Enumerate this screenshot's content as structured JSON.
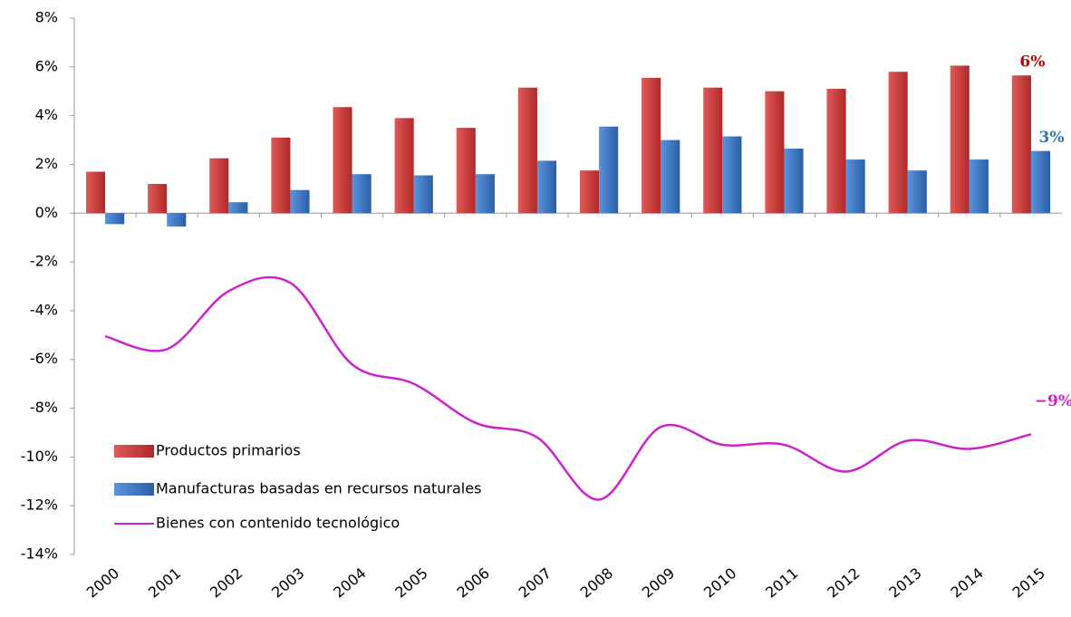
{
  "chart_data": {
    "type": "bar-line",
    "categories": [
      "2000",
      "2001",
      "2002",
      "2003",
      "2004",
      "2005",
      "2006",
      "2007",
      "2008",
      "2009",
      "2010",
      "2011",
      "2012",
      "2013",
      "2014",
      "2015"
    ],
    "series": [
      {
        "name": "Productos primarios",
        "type": "bar",
        "color": "#d23b3b",
        "values": [
          1.7,
          1.2,
          2.25,
          3.1,
          4.35,
          3.9,
          3.5,
          5.15,
          1.75,
          5.55,
          5.15,
          5.0,
          5.1,
          5.8,
          6.05,
          5.65
        ],
        "value_labels": [
          null,
          null,
          null,
          null,
          null,
          null,
          null,
          null,
          null,
          null,
          null,
          null,
          null,
          null,
          null,
          "6%"
        ],
        "label_color": "#c00000"
      },
      {
        "name": "Manufacturas basadas en recursos naturales",
        "type": "bar",
        "color": "#3a78c8",
        "values": [
          -0.45,
          -0.55,
          0.45,
          0.95,
          1.6,
          1.55,
          1.6,
          2.15,
          3.55,
          3.0,
          3.15,
          2.65,
          2.2,
          1.75,
          2.2,
          2.55
        ],
        "value_labels": [
          null,
          null,
          null,
          null,
          null,
          null,
          null,
          null,
          null,
          null,
          null,
          null,
          null,
          null,
          null,
          "3%"
        ],
        "label_color": "#2e75b6"
      },
      {
        "name": "Bienes con contenido tecnológico",
        "type": "line",
        "color": "#cc22cc",
        "values": [
          -5.05,
          -5.58,
          -3.2,
          -2.86,
          -6.2,
          -7.0,
          -8.6,
          -9.2,
          -11.75,
          -8.77,
          -9.5,
          -9.5,
          -10.6,
          -9.33,
          -9.67,
          -9.07
        ],
        "value_labels": [
          null,
          null,
          null,
          null,
          null,
          null,
          null,
          null,
          null,
          null,
          null,
          null,
          null,
          null,
          null,
          "−9%"
        ],
        "label_color": "#cc22cc"
      }
    ],
    "ylim": [
      -14,
      8
    ],
    "yticks": [
      {
        "value": -14,
        "label": "-14%"
      },
      {
        "value": -12,
        "label": "-12%"
      },
      {
        "value": -10,
        "label": "-10%"
      },
      {
        "value": -8,
        "label": "-8%"
      },
      {
        "value": -6,
        "label": "-6%"
      },
      {
        "value": -4,
        "label": "-4%"
      },
      {
        "value": -2,
        "label": "-2%"
      },
      {
        "value": 0,
        "label": "0%"
      },
      {
        "value": 2,
        "label": "2%"
      },
      {
        "value": 4,
        "label": "4%"
      },
      {
        "value": 6,
        "label": "6%"
      },
      {
        "value": 8,
        "label": "8%"
      }
    ],
    "legend": "lower left"
  }
}
